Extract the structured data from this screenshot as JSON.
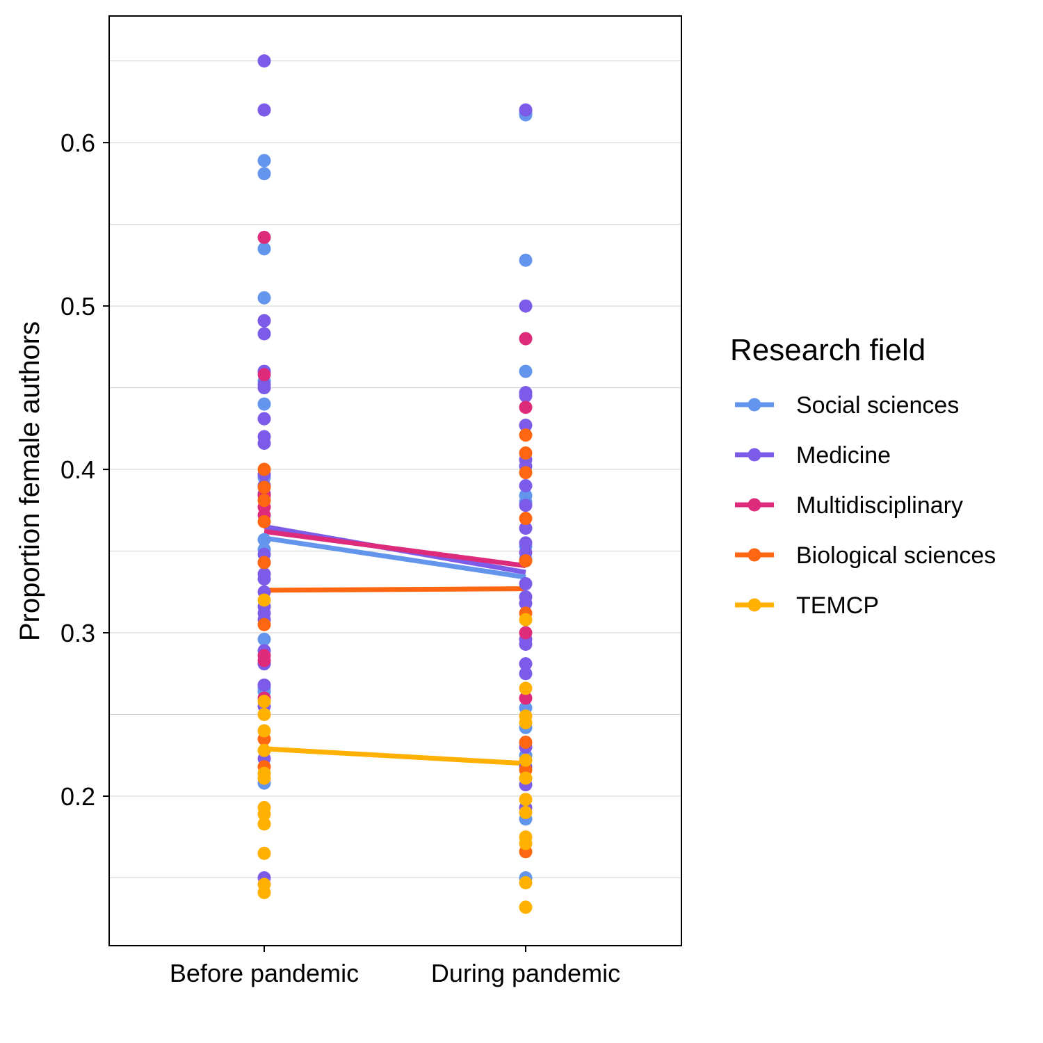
{
  "chart_data": {
    "type": "scatter",
    "ylabel": "Proportion female authors",
    "xlabel": "",
    "categories": [
      "Before pandemic",
      "During pandemic"
    ],
    "ylim": [
      0.1085,
      0.6775
    ],
    "y_ticks": [
      "0.2",
      "0.3",
      "0.4",
      "0.5",
      "0.6"
    ],
    "grid": true,
    "legend": {
      "title": "Research field",
      "position": "right"
    },
    "series": [
      {
        "name": "Social sciences",
        "color": "#6495ED",
        "mean": [
          0.358,
          0.334
        ],
        "points": [
          [
            0.589,
            0.581,
            0.535,
            0.505,
            0.454,
            0.44,
            0.395,
            0.357,
            0.351,
            0.296,
            0.266,
            0.264,
            0.208
          ],
          [
            0.618,
            0.617,
            0.528,
            0.46,
            0.384,
            0.38,
            0.353,
            0.345,
            0.254,
            0.242,
            0.225,
            0.186,
            0.15
          ]
        ]
      },
      {
        "name": "Medicine",
        "color": "#7B5BE8",
        "mean": [
          0.365,
          0.337
        ],
        "points": [
          [
            0.65,
            0.62,
            0.491,
            0.483,
            0.46,
            0.452,
            0.45,
            0.431,
            0.42,
            0.416,
            0.397,
            0.39,
            0.385,
            0.348,
            0.343,
            0.336,
            0.333,
            0.325,
            0.316,
            0.312,
            0.308,
            0.289,
            0.281,
            0.268,
            0.255,
            0.223,
            0.15
          ],
          [
            0.62,
            0.5,
            0.447,
            0.445,
            0.427,
            0.406,
            0.402,
            0.39,
            0.378,
            0.364,
            0.355,
            0.349,
            0.33,
            0.322,
            0.318,
            0.296,
            0.293,
            0.281,
            0.275,
            0.23,
            0.218,
            0.207,
            0.193
          ]
        ]
      },
      {
        "name": "Multidisciplinary",
        "color": "#DD2A7B",
        "mean": [
          0.362,
          0.341
        ],
        "points": [
          [
            0.542,
            0.458,
            0.384,
            0.377,
            0.372,
            0.286,
            0.283,
            0.26
          ],
          [
            0.48,
            0.438,
            0.3,
            0.26
          ]
        ]
      },
      {
        "name": "Biological sciences",
        "color": "#FF6611",
        "mean": [
          0.326,
          0.327
        ],
        "points": [
          [
            0.4,
            0.389,
            0.381,
            0.368,
            0.343,
            0.305,
            0.235,
            0.218
          ],
          [
            0.421,
            0.41,
            0.398,
            0.37,
            0.344,
            0.312,
            0.233,
            0.216,
            0.166
          ]
        ]
      },
      {
        "name": "TEMCP",
        "color": "#FFB000",
        "mean": [
          0.229,
          0.22
        ],
        "points": [
          [
            0.32,
            0.258,
            0.25,
            0.24,
            0.228,
            0.214,
            0.211,
            0.193,
            0.189,
            0.183,
            0.165,
            0.146,
            0.141
          ],
          [
            0.308,
            0.266,
            0.249,
            0.245,
            0.222,
            0.211,
            0.198,
            0.19,
            0.175,
            0.171,
            0.147,
            0.132
          ]
        ]
      }
    ]
  }
}
